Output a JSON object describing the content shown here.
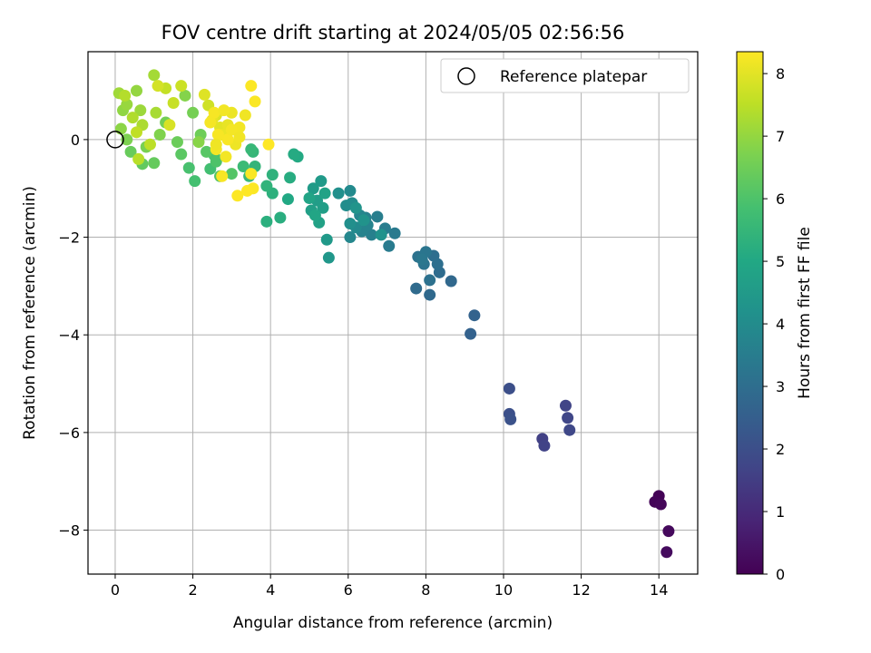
{
  "chart_data": {
    "type": "scatter",
    "title": "FOV centre drift starting at 2024/05/05 02:56:56",
    "xlabel": "Angular distance from reference (arcmin)",
    "ylabel": "Rotation from reference (arcmin)",
    "xlim": [
      -0.7,
      15.0
    ],
    "ylim": [
      -8.9,
      1.8
    ],
    "xticks": [
      "0",
      "2",
      "4",
      "6",
      "8",
      "10",
      "12",
      "14"
    ],
    "yticks": [
      "0",
      "−2",
      "−4",
      "−6",
      "−8"
    ],
    "grid": true,
    "legend": {
      "placement": "top-right",
      "entries": [
        "Reference platepar"
      ]
    },
    "colorbar": {
      "label": "Hours from first FF file",
      "range": [
        0,
        8.35
      ],
      "ticks": [
        "0",
        "1",
        "2",
        "3",
        "4",
        "5",
        "6",
        "7",
        "8"
      ],
      "colormap": "viridis"
    },
    "reference_point": {
      "x": 0,
      "y": 0
    },
    "series": [
      {
        "points": [
          [
            14.0,
            -7.3,
            0.05
          ],
          [
            13.9,
            -7.42,
            0.1
          ],
          [
            14.05,
            -7.47,
            0.15
          ],
          [
            14.25,
            -8.02,
            0.2
          ],
          [
            14.2,
            -8.45,
            0.25
          ],
          [
            11.0,
            -6.13,
            1.6
          ],
          [
            11.05,
            -6.27,
            1.65
          ],
          [
            11.6,
            -5.45,
            1.7
          ],
          [
            11.65,
            -5.7,
            1.75
          ],
          [
            11.7,
            -5.95,
            1.8
          ],
          [
            10.15,
            -5.1,
            2.0
          ],
          [
            10.15,
            -5.62,
            2.05
          ],
          [
            10.18,
            -5.73,
            2.1
          ],
          [
            9.15,
            -3.98,
            2.6
          ],
          [
            9.25,
            -3.6,
            2.65
          ],
          [
            8.65,
            -2.9,
            2.8
          ],
          [
            8.1,
            -3.18,
            2.85
          ],
          [
            7.75,
            -3.05,
            2.9
          ],
          [
            8.35,
            -2.72,
            2.95
          ],
          [
            8.2,
            -2.38,
            3.0
          ],
          [
            8.3,
            -2.55,
            3.05
          ],
          [
            8.1,
            -2.88,
            3.1
          ],
          [
            7.8,
            -2.4,
            3.15
          ],
          [
            7.95,
            -2.55,
            3.2
          ],
          [
            8.0,
            -2.3,
            3.25
          ],
          [
            7.9,
            -2.45,
            3.3
          ],
          [
            7.2,
            -1.92,
            3.4
          ],
          [
            7.05,
            -2.18,
            3.45
          ],
          [
            6.95,
            -1.82,
            3.5
          ],
          [
            6.75,
            -1.58,
            3.55
          ],
          [
            6.6,
            -1.95,
            3.6
          ],
          [
            6.45,
            -1.6,
            3.65
          ],
          [
            6.35,
            -1.88,
            3.7
          ],
          [
            6.5,
            -1.75,
            3.75
          ],
          [
            6.3,
            -1.55,
            3.8
          ],
          [
            6.05,
            -2.0,
            3.85
          ],
          [
            6.2,
            -1.8,
            3.9
          ],
          [
            6.05,
            -1.05,
            3.95
          ],
          [
            6.1,
            -1.3,
            4.0
          ],
          [
            5.95,
            -1.35,
            4.05
          ],
          [
            6.05,
            -1.72,
            4.1
          ],
          [
            5.75,
            -1.1,
            4.15
          ],
          [
            6.85,
            -1.95,
            4.2
          ],
          [
            6.4,
            -1.65,
            4.25
          ],
          [
            6.2,
            -1.4,
            4.3
          ],
          [
            5.5,
            -2.42,
            4.4
          ],
          [
            5.45,
            -2.05,
            4.45
          ],
          [
            5.3,
            -0.85,
            4.5
          ],
          [
            5.1,
            -1.0,
            4.55
          ],
          [
            5.2,
            -1.25,
            4.6
          ],
          [
            5.35,
            -1.4,
            4.65
          ],
          [
            5.05,
            -1.45,
            4.7
          ],
          [
            5.25,
            -1.7,
            4.75
          ],
          [
            5.4,
            -1.1,
            4.8
          ],
          [
            5.0,
            -1.2,
            4.85
          ],
          [
            5.15,
            -1.55,
            4.9
          ],
          [
            4.45,
            -1.22,
            5.0
          ],
          [
            4.7,
            -0.35,
            5.05
          ],
          [
            4.6,
            -0.3,
            5.1
          ],
          [
            4.5,
            -0.78,
            5.15
          ],
          [
            4.25,
            -1.6,
            5.2
          ],
          [
            3.9,
            -1.68,
            5.25
          ],
          [
            4.05,
            -1.1,
            5.3
          ],
          [
            4.05,
            -0.72,
            5.35
          ],
          [
            3.9,
            -0.95,
            5.4
          ],
          [
            3.6,
            -0.55,
            5.45
          ],
          [
            3.55,
            -0.25,
            5.5
          ],
          [
            3.5,
            -0.2,
            5.55
          ],
          [
            3.45,
            -0.75,
            5.6
          ],
          [
            3.3,
            -0.55,
            5.65
          ],
          [
            2.45,
            -0.6,
            5.8
          ],
          [
            2.05,
            -0.85,
            5.85
          ],
          [
            1.9,
            -0.58,
            5.9
          ],
          [
            2.55,
            -0.32,
            5.95
          ],
          [
            2.6,
            -0.45,
            6.0
          ],
          [
            2.7,
            -0.75,
            6.05
          ],
          [
            3.0,
            -0.7,
            6.1
          ],
          [
            2.35,
            -0.25,
            6.15
          ],
          [
            1.7,
            -0.3,
            6.2
          ],
          [
            0.7,
            -0.5,
            6.3
          ],
          [
            1.0,
            -0.48,
            6.35
          ],
          [
            0.4,
            -0.25,
            6.4
          ],
          [
            1.6,
            -0.05,
            6.45
          ],
          [
            2.2,
            0.1,
            6.5
          ],
          [
            1.3,
            0.35,
            6.55
          ],
          [
            2.0,
            0.55,
            6.6
          ],
          [
            0.8,
            -0.15,
            6.65
          ],
          [
            0.3,
            0.0,
            6.7
          ],
          [
            1.15,
            0.1,
            6.75
          ],
          [
            1.8,
            0.9,
            6.8
          ],
          [
            2.15,
            -0.05,
            6.85
          ],
          [
            0.15,
            0.22,
            6.9
          ],
          [
            0.2,
            0.6,
            6.95
          ],
          [
            0.55,
            1.0,
            7.0
          ],
          [
            0.3,
            0.72,
            7.05
          ],
          [
            0.65,
            0.6,
            7.1
          ],
          [
            0.1,
            0.95,
            7.15
          ],
          [
            1.0,
            1.32,
            7.2
          ],
          [
            1.05,
            0.55,
            7.25
          ],
          [
            0.7,
            0.3,
            7.3
          ],
          [
            0.45,
            0.45,
            7.35
          ],
          [
            0.25,
            0.9,
            7.4
          ],
          [
            0.6,
            -0.4,
            7.45
          ],
          [
            0.9,
            -0.1,
            7.5
          ],
          [
            0.55,
            0.15,
            7.55
          ],
          [
            1.3,
            1.05,
            7.6
          ],
          [
            1.5,
            0.75,
            7.65
          ],
          [
            1.7,
            1.1,
            7.7
          ],
          [
            2.4,
            0.7,
            7.75
          ],
          [
            1.1,
            1.1,
            7.8
          ],
          [
            1.4,
            0.3,
            7.85
          ],
          [
            2.6,
            0.5,
            7.9
          ],
          [
            2.3,
            0.92,
            7.95
          ],
          [
            2.7,
            0.25,
            8.0
          ],
          [
            2.5,
            0.4,
            8.05
          ],
          [
            2.9,
            0.3,
            8.08
          ],
          [
            2.75,
            0.1,
            8.1
          ],
          [
            3.0,
            0.55,
            8.13
          ],
          [
            3.1,
            -0.1,
            8.15
          ],
          [
            3.35,
            0.5,
            8.18
          ],
          [
            3.2,
            0.25,
            8.2
          ],
          [
            2.85,
            -0.35,
            8.22
          ],
          [
            2.6,
            -0.2,
            8.24
          ],
          [
            2.55,
            0.55,
            8.26
          ],
          [
            2.75,
            -0.75,
            8.28
          ],
          [
            3.5,
            -0.7,
            8.3
          ],
          [
            3.55,
            -1.0,
            8.32
          ],
          [
            3.15,
            -1.15,
            8.34
          ],
          [
            3.4,
            -1.05,
            8.35
          ],
          [
            3.95,
            -0.1,
            8.35
          ],
          [
            3.5,
            1.1,
            8.33
          ],
          [
            3.6,
            0.78,
            8.31
          ],
          [
            2.9,
            0.0,
            8.29
          ],
          [
            2.65,
            0.1,
            8.27
          ],
          [
            2.45,
            0.35,
            8.25
          ],
          [
            3.0,
            0.2,
            8.23
          ],
          [
            2.8,
            0.6,
            8.21
          ],
          [
            3.2,
            0.05,
            8.19
          ],
          [
            2.6,
            -0.1,
            8.17
          ]
        ]
      }
    ]
  }
}
